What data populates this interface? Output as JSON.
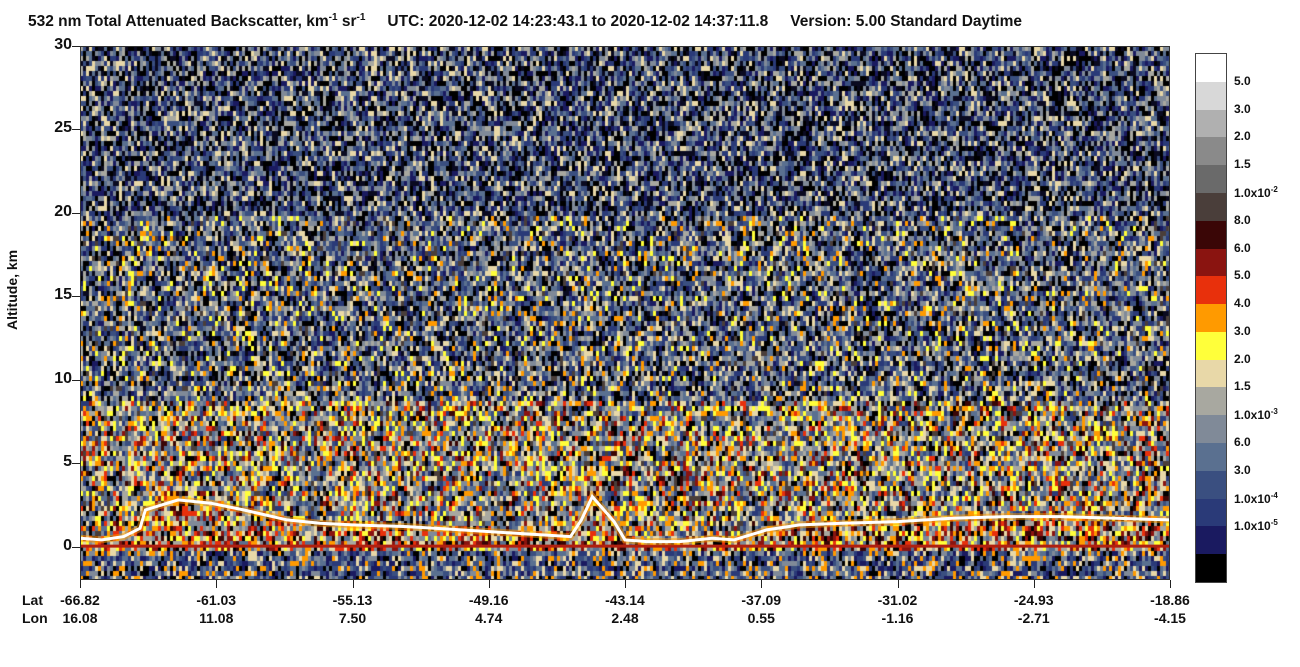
{
  "header": {
    "title_main": "532 nm Total Attenuated Backscatter, km",
    "title_exp1": "-1",
    "title_mid": " sr",
    "title_exp2": "-1",
    "utc": "UTC:  2020-12-02 14:23:43.1  to  2020-12-02 14:37:11.8",
    "version": "Version: 5.00  Standard  Daytime"
  },
  "chart_data": {
    "type": "heatmap",
    "title": "532 nm Total Attenuated Backscatter, km-1 sr-1",
    "ylabel": "Altitude, km",
    "ylim": [
      -2,
      30
    ],
    "yticks": [
      0,
      5,
      10,
      15,
      20,
      25,
      30
    ],
    "x_rows": {
      "lat_label": "Lat",
      "lon_label": "Lon",
      "lat": [
        "-66.82",
        "-61.03",
        "-55.13",
        "-49.16",
        "-43.14",
        "-37.09",
        "-31.02",
        "-24.93",
        "-18.86"
      ],
      "lon": [
        "16.08",
        "11.08",
        "7.50",
        "4.74",
        "2.48",
        "0.55",
        "-1.16",
        "-2.71",
        "-4.15"
      ]
    },
    "surface_altitude_km": 0,
    "cloud_top_profile": {
      "x_fraction": [
        0.0,
        0.02,
        0.04,
        0.055,
        0.06,
        0.09,
        0.12,
        0.15,
        0.19,
        0.22,
        0.25,
        0.3,
        0.35,
        0.4,
        0.45,
        0.46,
        0.47,
        0.49,
        0.5,
        0.52,
        0.55,
        0.58,
        0.6,
        0.61,
        0.63,
        0.65,
        0.66,
        0.7,
        0.75,
        0.8,
        0.85,
        0.9,
        0.95,
        1.0
      ],
      "altitude_km": [
        0.5,
        0.4,
        0.6,
        1.1,
        2.2,
        2.8,
        2.6,
        2.2,
        1.6,
        1.4,
        1.3,
        1.2,
        1.0,
        0.8,
        0.6,
        1.6,
        3.0,
        1.5,
        0.4,
        0.3,
        0.3,
        0.5,
        0.4,
        0.6,
        1.0,
        1.2,
        1.3,
        1.4,
        1.5,
        1.7,
        1.8,
        1.8,
        1.7,
        1.6
      ]
    },
    "colorbar": {
      "labels": [
        {
          "value": "5.0",
          "exp": ""
        },
        {
          "value": "3.0",
          "exp": ""
        },
        {
          "value": "2.0",
          "exp": ""
        },
        {
          "value": "1.5",
          "exp": ""
        },
        {
          "value": "1.0x10",
          "exp": "-2"
        },
        {
          "value": "8.0",
          "exp": ""
        },
        {
          "value": "6.0",
          "exp": ""
        },
        {
          "value": "5.0",
          "exp": ""
        },
        {
          "value": "4.0",
          "exp": ""
        },
        {
          "value": "3.0",
          "exp": ""
        },
        {
          "value": "2.0",
          "exp": ""
        },
        {
          "value": "1.5",
          "exp": ""
        },
        {
          "value": "1.0x10",
          "exp": "-3"
        },
        {
          "value": "6.0",
          "exp": ""
        },
        {
          "value": "3.0",
          "exp": ""
        },
        {
          "value": "1.0x10",
          "exp": "-4"
        },
        {
          "value": "1.0x10",
          "exp": "-5"
        }
      ],
      "colors": [
        "#ffffff",
        "#d8d8d8",
        "#b0b0b0",
        "#8a8a8a",
        "#6a6a6a",
        "#4a3e3a",
        "#3a0606",
        "#8a1410",
        "#e8300c",
        "#ff9a00",
        "#ffff3a",
        "#e8d8a8",
        "#a8a8a0",
        "#808a98",
        "#5a7090",
        "#3a4f80",
        "#2a3a78",
        "#1a1a60",
        "#000000"
      ]
    }
  }
}
